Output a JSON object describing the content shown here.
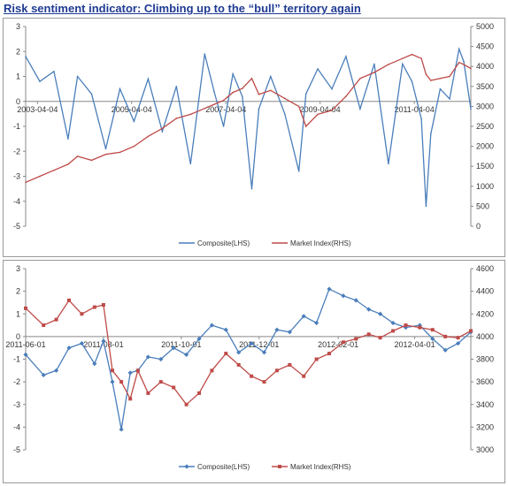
{
  "title": "Risk sentiment indicator: Climbing up to the “bull” territory again",
  "colors": {
    "composite": "#4a7ebb",
    "market": "#be4b48",
    "axis": "#888888"
  },
  "chart_data": [
    {
      "type": "line",
      "x_ticks": [
        "2003-04-04",
        "2005-04-04",
        "2007-04-04",
        "2009-04-04",
        "2011-04-04"
      ],
      "left_axis": {
        "ylim": [
          -5,
          3
        ],
        "ticks": [
          "3",
          "2",
          "1",
          "0",
          "-1",
          "-2",
          "-3",
          "-4",
          "-5"
        ]
      },
      "right_axis": {
        "ylim": [
          0,
          5000
        ],
        "ticks": [
          "5000",
          "4500",
          "4000",
          "3500",
          "3000",
          "2500",
          "2000",
          "1500",
          "1000",
          "500",
          "0"
        ]
      },
      "x_range": [
        2003.0,
        2012.45
      ],
      "legend": [
        "Composite(LHS)",
        "Market Index(RHS)"
      ],
      "series": [
        {
          "name": "Composite(LHS)",
          "axis": "left",
          "x": [
            2003.0,
            2003.3,
            2003.6,
            2003.9,
            2004.1,
            2004.4,
            2004.7,
            2005.0,
            2005.3,
            2005.6,
            2005.9,
            2006.2,
            2006.5,
            2006.8,
            2007.0,
            2007.2,
            2007.4,
            2007.6,
            2007.8,
            2007.95,
            2008.2,
            2008.5,
            2008.8,
            2008.95,
            2009.2,
            2009.5,
            2009.8,
            2010.1,
            2010.4,
            2010.7,
            2011.0,
            2011.2,
            2011.4,
            2011.5,
            2011.6,
            2011.8,
            2012.0,
            2012.2,
            2012.3,
            2012.45
          ],
          "y": [
            1.8,
            0.8,
            1.2,
            -1.5,
            1.0,
            0.3,
            -1.9,
            0.5,
            -0.8,
            0.9,
            -1.2,
            0.6,
            -2.5,
            1.9,
            0.4,
            -1.0,
            1.1,
            0.2,
            -3.5,
            -0.3,
            1.0,
            -0.5,
            -2.8,
            0.3,
            1.3,
            0.5,
            1.8,
            -0.3,
            1.5,
            -2.5,
            1.5,
            0.8,
            -0.7,
            -4.2,
            -1.3,
            0.5,
            0.1,
            2.1,
            1.6,
            -0.3
          ]
        },
        {
          "name": "Market Index(RHS)",
          "axis": "right",
          "x": [
            2003.0,
            2003.3,
            2003.6,
            2003.9,
            2004.1,
            2004.4,
            2004.7,
            2005.0,
            2005.3,
            2005.6,
            2005.9,
            2006.2,
            2006.5,
            2006.8,
            2007.0,
            2007.2,
            2007.4,
            2007.6,
            2007.8,
            2007.95,
            2008.2,
            2008.5,
            2008.8,
            2008.95,
            2009.2,
            2009.5,
            2009.8,
            2010.1,
            2010.4,
            2010.7,
            2011.0,
            2011.2,
            2011.4,
            2011.5,
            2011.6,
            2011.8,
            2012.0,
            2012.2,
            2012.3,
            2012.45
          ],
          "y": [
            1100,
            1250,
            1400,
            1550,
            1750,
            1650,
            1800,
            1850,
            2000,
            2250,
            2450,
            2700,
            2800,
            2950,
            3050,
            3150,
            3350,
            3450,
            3700,
            3300,
            3400,
            3200,
            3000,
            2500,
            2800,
            2900,
            3250,
            3700,
            3850,
            4050,
            4200,
            4300,
            4200,
            3800,
            3650,
            3700,
            3750,
            4100,
            4050,
            3950
          ]
        }
      ]
    },
    {
      "type": "line",
      "x_ticks": [
        "2011-06-01",
        "2011-08-01",
        "2011-10-01",
        "2011-12-01",
        "2012-02-01",
        "2012-04-01"
      ],
      "left_axis": {
        "ylim": [
          -5,
          3
        ],
        "ticks": [
          "3",
          "2",
          "1",
          "0",
          "-1",
          "-2",
          "-3",
          "-4",
          "-5"
        ]
      },
      "right_axis": {
        "ylim": [
          3000,
          4600
        ],
        "ticks": [
          "4600",
          "4400",
          "4200",
          "4000",
          "3800",
          "3600",
          "3400",
          "3200",
          "3000"
        ]
      },
      "x_range": [
        "2011-06-01",
        "2012-05-15"
      ],
      "legend": [
        "Composite(LHS)",
        "Market Index(RHS)"
      ],
      "series": [
        {
          "name": "Composite(LHS)",
          "axis": "left",
          "x": [
            "2011-06-01",
            "2011-06-15",
            "2011-06-25",
            "2011-07-05",
            "2011-07-15",
            "2011-07-25",
            "2011-08-01",
            "2011-08-08",
            "2011-08-15",
            "2011-08-22",
            "2011-08-28",
            "2011-09-05",
            "2011-09-15",
            "2011-09-25",
            "2011-10-05",
            "2011-10-15",
            "2011-10-25",
            "2011-11-05",
            "2011-11-15",
            "2011-11-25",
            "2011-12-05",
            "2011-12-15",
            "2011-12-25",
            "2012-01-05",
            "2012-01-15",
            "2012-01-25",
            "2012-02-05",
            "2012-02-15",
            "2012-02-25",
            "2012-03-05",
            "2012-03-15",
            "2012-03-25",
            "2012-04-05",
            "2012-04-15",
            "2012-04-25",
            "2012-05-05",
            "2012-05-15"
          ],
          "y": [
            -0.8,
            -1.7,
            -1.5,
            -0.5,
            -0.3,
            -1.2,
            -0.2,
            -2.0,
            -4.1,
            -1.6,
            -1.5,
            -0.9,
            -1.0,
            -0.5,
            -0.8,
            -0.1,
            0.5,
            0.3,
            -0.7,
            -0.3,
            -0.7,
            0.3,
            0.2,
            0.9,
            0.6,
            2.1,
            1.8,
            1.6,
            1.2,
            1.0,
            0.6,
            0.4,
            0.5,
            -0.1,
            -0.6,
            -0.3,
            0.2
          ]
        },
        {
          "name": "Market Index(RHS)",
          "axis": "right",
          "x": [
            "2011-06-01",
            "2011-06-15",
            "2011-06-25",
            "2011-07-05",
            "2011-07-15",
            "2011-07-25",
            "2011-08-01",
            "2011-08-08",
            "2011-08-15",
            "2011-08-22",
            "2011-08-28",
            "2011-09-05",
            "2011-09-15",
            "2011-09-25",
            "2011-10-05",
            "2011-10-15",
            "2011-10-25",
            "2011-11-05",
            "2011-11-15",
            "2011-11-25",
            "2011-12-05",
            "2011-12-15",
            "2011-12-25",
            "2012-01-05",
            "2012-01-15",
            "2012-01-25",
            "2012-02-05",
            "2012-02-15",
            "2012-02-25",
            "2012-03-05",
            "2012-03-15",
            "2012-03-25",
            "2012-04-05",
            "2012-04-15",
            "2012-04-25",
            "2012-05-05",
            "2012-05-15"
          ],
          "y": [
            4250,
            4100,
            4150,
            4320,
            4200,
            4260,
            4280,
            3700,
            3600,
            3450,
            3700,
            3500,
            3600,
            3550,
            3400,
            3500,
            3700,
            3850,
            3750,
            3650,
            3600,
            3700,
            3750,
            3650,
            3800,
            3850,
            3950,
            3980,
            4020,
            3990,
            4050,
            4100,
            4080,
            4060,
            4000,
            3990,
            4050
          ]
        }
      ]
    }
  ]
}
